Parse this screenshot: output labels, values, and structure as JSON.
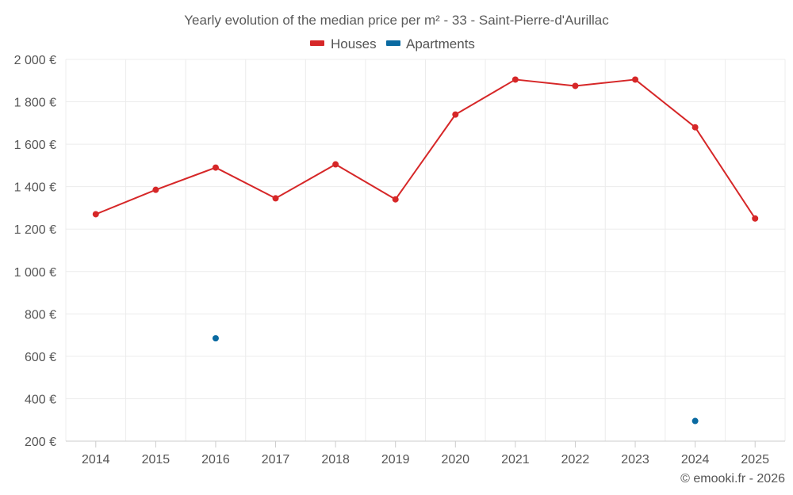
{
  "chart_data": {
    "type": "line",
    "title": "Yearly evolution of the median price per m² - 33 - Saint-Pierre-d'Aurillac",
    "categories": [
      "2014",
      "2015",
      "2016",
      "2017",
      "2018",
      "2019",
      "2020",
      "2021",
      "2022",
      "2023",
      "2024",
      "2025"
    ],
    "ylim": [
      200,
      2000
    ],
    "y_ticks": [
      200,
      400,
      600,
      800,
      1000,
      1200,
      1400,
      1600,
      1800,
      2000
    ],
    "y_tick_labels": [
      "200 €",
      "400 €",
      "600 €",
      "800 €",
      "1 000 €",
      "1 200 €",
      "1 400 €",
      "1 600 €",
      "1 800 €",
      "2 000 €"
    ],
    "grid": true,
    "legend_position": "top-center",
    "series": [
      {
        "name": "Houses",
        "color": "#d62728",
        "values": [
          1270,
          1385,
          1490,
          1345,
          1505,
          1340,
          1740,
          1905,
          1875,
          1905,
          1680,
          1250
        ]
      },
      {
        "name": "Apartments",
        "color": "#0a6aa1",
        "values": [
          null,
          null,
          685,
          null,
          null,
          null,
          null,
          null,
          null,
          null,
          295,
          null
        ]
      }
    ]
  },
  "credit": "© emooki.fr - 2026"
}
